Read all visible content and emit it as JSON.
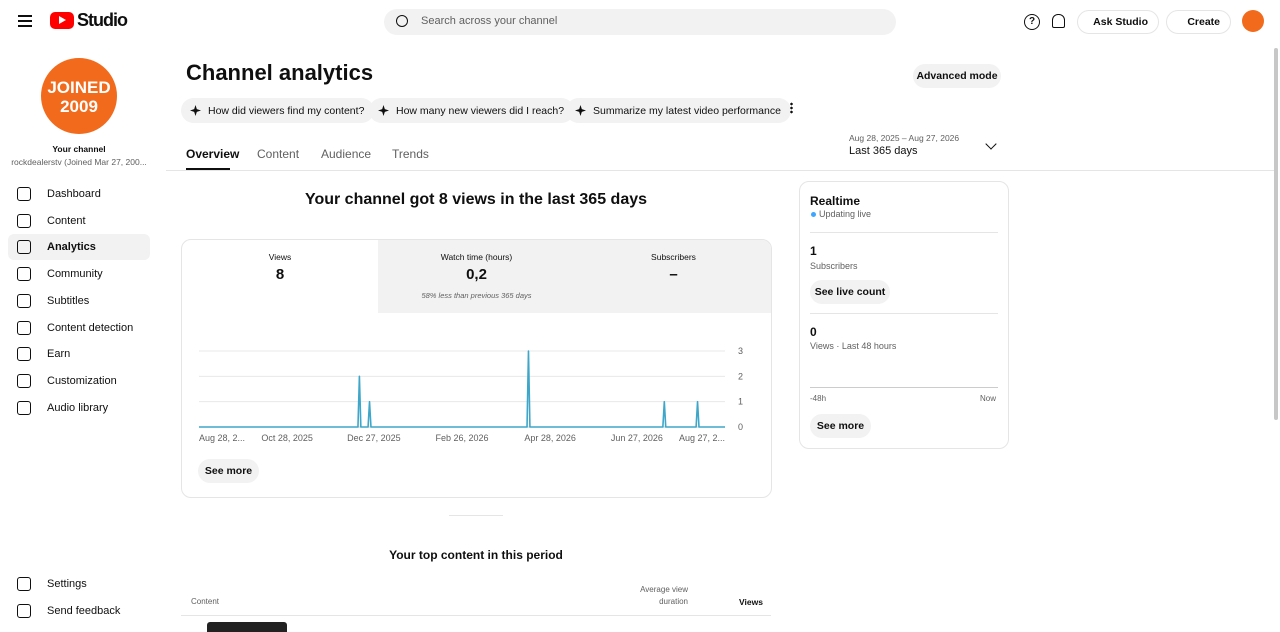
{
  "header": {
    "logo": "Studio",
    "search_placeholder": "Search across your channel",
    "ask": "Ask Studio",
    "create": "Create"
  },
  "sidebar": {
    "avatar_text": [
      "JOINED",
      "2009"
    ],
    "channel_label": "Your channel",
    "channel_name": "rockdealerstv (Joined Mar 27, 200...",
    "items": [
      "Dashboard",
      "Content",
      "Analytics",
      "Community",
      "Subtitles",
      "Content detection",
      "Earn",
      "Customization",
      "Audio library"
    ],
    "bottom": [
      "Settings",
      "Send feedback"
    ]
  },
  "main": {
    "title": "Channel analytics",
    "advanced": "Advanced mode",
    "chips": [
      "How did viewers find my content?",
      "How many new viewers did I reach?",
      "Summarize my latest video performance"
    ],
    "tabs": [
      "Overview",
      "Content",
      "Audience",
      "Trends"
    ],
    "range": "Aug 28, 2025 – Aug 27, 2026",
    "period": "Last 365 days",
    "headline": "Your channel got 8 views in the last 365 days",
    "metrics": [
      {
        "label": "Views",
        "value": "8"
      },
      {
        "label": "Watch time (hours)",
        "value": "0,2",
        "note": "58% less than previous 365 days"
      },
      {
        "label": "Subscribers",
        "value": "–"
      }
    ],
    "see_more": "See more",
    "top_title": "Your top content in this period",
    "table_headers": [
      "Content",
      "Average view duration",
      "Views"
    ]
  },
  "chart": {
    "type": "line",
    "color": "#3ea6c8",
    "x": [
      "2025-08-28",
      "2025-12-16",
      "2025-12-17",
      "2025-12-18",
      "2025-12-23",
      "2025-12-24",
      "2025-12-25",
      "2026-04-12",
      "2026-04-13",
      "2026-04-14",
      "2026-07-15",
      "2026-07-16",
      "2026-07-17",
      "2026-08-07",
      "2026-08-08",
      "2026-08-09",
      "2026-08-27"
    ],
    "values": [
      0,
      0,
      2,
      0,
      0,
      1,
      0,
      0,
      3,
      0,
      0,
      1,
      0,
      0,
      1,
      0,
      0
    ],
    "xlim": [
      "2025-08-28",
      "2026-08-27"
    ],
    "xticks": [
      {
        "value": "2025-08-28",
        "label": "Aug 28, 2..."
      },
      {
        "value": "2025-10-28",
        "label": "Oct 28, 2025"
      },
      {
        "value": "2025-12-27",
        "label": "Dec 27, 2025"
      },
      {
        "value": "2026-02-26",
        "label": "Feb 26, 2026"
      },
      {
        "value": "2026-04-28",
        "label": "Apr 28, 2026"
      },
      {
        "value": "2026-06-27",
        "label": "Jun 27, 2026"
      },
      {
        "value": "2026-08-27",
        "label": "Aug 27, 2..."
      }
    ],
    "ylim": [
      0,
      3
    ],
    "yticks": [
      0,
      1,
      2,
      3
    ],
    "grid": true
  },
  "realtime": {
    "title": "Realtime",
    "status": "Updating live",
    "subs": "1",
    "subs_label": "Subscribers",
    "live_btn": "See live count",
    "views": "0",
    "views_label": "Views · Last 48 hours",
    "start": "-48h",
    "end": "Now",
    "more": "See more"
  }
}
